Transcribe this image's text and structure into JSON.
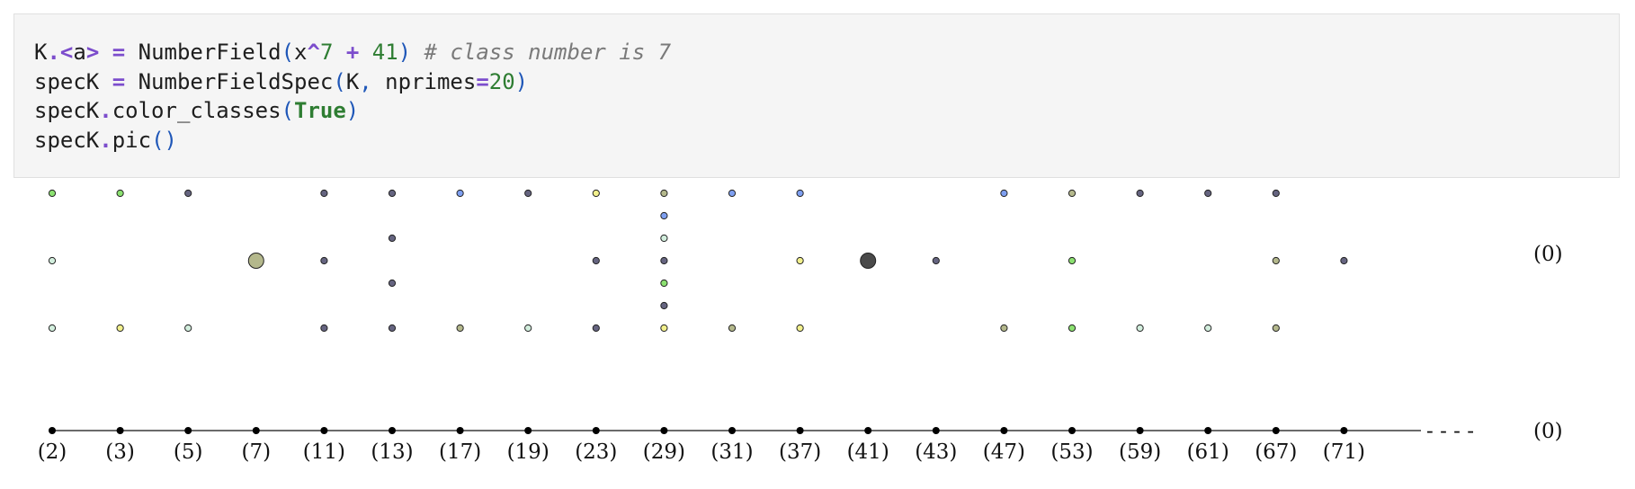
{
  "code": {
    "line1": {
      "k": "K",
      "dot": ".",
      "lt": "<",
      "a": "a",
      "gt": ">",
      "eq": " = ",
      "fn": "NumberField",
      "lp": "(",
      "x": "x",
      "caret": "^",
      "seven": "7",
      "plus": " + ",
      "c41": "41",
      "rp": ")",
      "comment": " # class number is 7"
    },
    "line2": {
      "var": "specK",
      "eq": " = ",
      "fn": "NumberFieldSpec",
      "lp": "(",
      "k": "K",
      "comma": ",",
      "arg": " nprimes",
      "eq2": "=",
      "n": "20",
      "rp": ")"
    },
    "line3": {
      "var": "specK",
      "dot": ".",
      "method": "color_classes",
      "lp": "(",
      "arg": "True",
      "rp": ")"
    },
    "line4": {
      "var": "specK",
      "dot": ".",
      "method": "pic",
      "lp": "(",
      "rp": ")"
    }
  },
  "colors": {
    "green": "#8be070",
    "gray": "#656480",
    "yellow": "#f2f08c",
    "blue": "#7e9ff0",
    "olive": "#b4b88c",
    "mint": "#d2eedd",
    "dark": "#4a4a4a"
  },
  "plot": {
    "primes": [
      "(2)",
      "(3)",
      "(5)",
      "(7)",
      "(11)",
      "(13)",
      "(17)",
      "(19)",
      "(23)",
      "(29)",
      "(31)",
      "(37)",
      "(41)",
      "(43)",
      "(47)",
      "(53)",
      "(59)",
      "(61)",
      "(67)",
      "(71)"
    ],
    "dash": "- - - -",
    "generic_top": "(0)",
    "generic_bottom": "(0)",
    "fibers": [
      [
        {
          "row": 3,
          "c": "green"
        },
        {
          "row": 0,
          "c": "mint"
        },
        {
          "row": -3,
          "c": "mint"
        }
      ],
      [
        {
          "row": 3,
          "c": "green"
        },
        {
          "row": -3,
          "c": "yellow"
        }
      ],
      [
        {
          "row": 3,
          "c": "gray"
        },
        {
          "row": -3,
          "c": "mint"
        }
      ],
      [
        {
          "row": 0,
          "c": "olive",
          "big": true
        }
      ],
      [
        {
          "row": 3,
          "c": "gray"
        },
        {
          "row": 0,
          "c": "gray"
        },
        {
          "row": -3,
          "c": "gray"
        }
      ],
      [
        {
          "row": 3,
          "c": "gray"
        },
        {
          "row": 1,
          "c": "gray"
        },
        {
          "row": -1,
          "c": "gray"
        },
        {
          "row": -3,
          "c": "gray"
        }
      ],
      [
        {
          "row": 3,
          "c": "blue"
        },
        {
          "row": -3,
          "c": "olive"
        }
      ],
      [
        {
          "row": 3,
          "c": "gray"
        },
        {
          "row": -3,
          "c": "mint"
        }
      ],
      [
        {
          "row": 3,
          "c": "yellow"
        },
        {
          "row": 0,
          "c": "gray"
        },
        {
          "row": -3,
          "c": "gray"
        }
      ],
      [
        {
          "row": 3,
          "c": "olive"
        },
        {
          "row": 2,
          "c": "blue"
        },
        {
          "row": 1,
          "c": "mint"
        },
        {
          "row": 0,
          "c": "gray"
        },
        {
          "row": -1,
          "c": "green"
        },
        {
          "row": -2,
          "c": "gray"
        },
        {
          "row": -3,
          "c": "yellow"
        }
      ],
      [
        {
          "row": 3,
          "c": "blue"
        },
        {
          "row": -3,
          "c": "olive"
        }
      ],
      [
        {
          "row": 3,
          "c": "blue"
        },
        {
          "row": 0,
          "c": "yellow"
        },
        {
          "row": -3,
          "c": "yellow"
        }
      ],
      [
        {
          "row": 0,
          "c": "dark",
          "big": true
        }
      ],
      [
        {
          "row": 0,
          "c": "gray"
        }
      ],
      [
        {
          "row": 3,
          "c": "blue"
        },
        {
          "row": -3,
          "c": "olive"
        }
      ],
      [
        {
          "row": 3,
          "c": "olive"
        },
        {
          "row": 0,
          "c": "green"
        },
        {
          "row": -3,
          "c": "green"
        }
      ],
      [
        {
          "row": 3,
          "c": "gray"
        },
        {
          "row": -3,
          "c": "mint"
        }
      ],
      [
        {
          "row": 3,
          "c": "gray"
        },
        {
          "row": -3,
          "c": "mint"
        }
      ],
      [
        {
          "row": 3,
          "c": "gray"
        },
        {
          "row": 0,
          "c": "olive"
        },
        {
          "row": -3,
          "c": "olive"
        }
      ],
      [
        {
          "row": 0,
          "c": "gray"
        }
      ]
    ]
  }
}
